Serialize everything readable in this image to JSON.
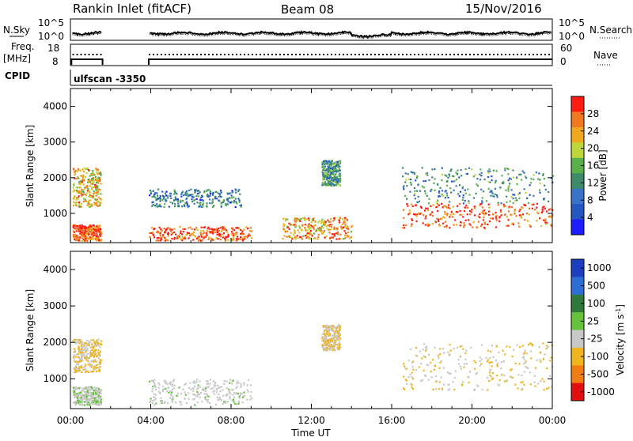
{
  "header": {
    "station": "Rankin Inlet (fitACF)",
    "beam": "Beam 08",
    "date": "15/Nov/2016"
  },
  "noise_panel": {
    "left_label": "N.Sky",
    "right_label": "N.Search",
    "left_ticks": [
      "10^5",
      "10^0"
    ],
    "right_ticks": [
      "10^5",
      "10^0"
    ]
  },
  "freq_panel": {
    "left_label_line1": "Freq.",
    "left_label_line2": "[MHz]",
    "left_ticks": [
      "18",
      "8"
    ],
    "right_label": "Nave",
    "right_ticks": [
      "60",
      "0"
    ]
  },
  "cpid": {
    "label": "CPID",
    "value": "ulfscan -3350"
  },
  "time_axis": {
    "label": "Time UT",
    "ticks": [
      "00:00",
      "04:00",
      "08:00",
      "12:00",
      "16:00",
      "20:00",
      "00:00"
    ]
  },
  "colors": {
    "power_scale": [
      "#1c1cff",
      "#2457c0",
      "#3a74c8",
      "#3f8a6a",
      "#59b04a",
      "#bfd63a",
      "#f0a81e",
      "#f07820",
      "#ff1a12"
    ],
    "velocity_scale": [
      "#1b3fbf",
      "#2d6ed6",
      "#2f7a3a",
      "#66c23a",
      "#c8c8c8",
      "#f0b41e",
      "#f07c14",
      "#e01010"
    ]
  },
  "chart_data": [
    {
      "type": "heatmap",
      "title": "",
      "xlabel": "",
      "ylabel": "Slant Range [km]",
      "xlim": [
        0,
        24
      ],
      "ylim": [
        180,
        4500
      ],
      "y_ticks": [
        "1000",
        "2000",
        "3000",
        "4000"
      ],
      "colorbar": {
        "label": "Power [dB]",
        "range": [
          0,
          32
        ],
        "tick_labels": [
          "4",
          "8",
          "12",
          "16",
          "20",
          "24",
          "28"
        ]
      },
      "data_gaps_hours": [
        [
          1.6,
          3.9
        ]
      ],
      "echo_regions": [
        {
          "t_start": 0.1,
          "t_end": 1.5,
          "r_start": 250,
          "r_end": 700,
          "power_db": 28
        },
        {
          "t_start": 0.1,
          "t_end": 1.5,
          "r_start": 1200,
          "r_end": 2300,
          "power_db": 22
        },
        {
          "t_start": 3.9,
          "t_end": 9.0,
          "r_start": 250,
          "r_end": 650,
          "power_db": 28
        },
        {
          "t_start": 3.9,
          "t_end": 8.5,
          "r_start": 1200,
          "r_end": 1700,
          "power_db": 10
        },
        {
          "t_start": 10.5,
          "t_end": 14.0,
          "r_start": 300,
          "r_end": 900,
          "power_db": 24
        },
        {
          "t_start": 12.5,
          "t_end": 13.4,
          "r_start": 1800,
          "r_end": 2500,
          "power_db": 12
        },
        {
          "t_start": 16.5,
          "t_end": 24.0,
          "r_start": 600,
          "r_end": 1300,
          "power_db": 28
        },
        {
          "t_start": 16.5,
          "t_end": 24.0,
          "r_start": 1300,
          "r_end": 2300,
          "power_db": 12
        }
      ]
    },
    {
      "type": "heatmap",
      "title": "",
      "xlabel": "Time UT",
      "ylabel": "Slant Range [km]",
      "xlim": [
        0,
        24
      ],
      "ylim": [
        180,
        4500
      ],
      "y_ticks": [
        "1000",
        "2000",
        "3000",
        "4000"
      ],
      "colorbar": {
        "label": "Velocity [m s^-1]",
        "range": [
          -1200,
          1200
        ],
        "tick_labels": [
          "1000",
          "500",
          "100",
          "25",
          "-25",
          "-100",
          "-500",
          "-1000"
        ]
      },
      "data_gaps_hours": [
        [
          1.6,
          3.9
        ]
      ],
      "echo_regions": [
        {
          "t_start": 0.1,
          "t_end": 1.5,
          "r_start": 1200,
          "r_end": 2100,
          "velocity": -300
        },
        {
          "t_start": 0.1,
          "t_end": 1.5,
          "r_start": 300,
          "r_end": 800,
          "velocity": -50
        },
        {
          "t_start": 3.9,
          "t_end": 9.0,
          "r_start": 300,
          "r_end": 1000,
          "velocity": -100
        },
        {
          "t_start": 12.5,
          "t_end": 13.4,
          "r_start": 1800,
          "r_end": 2500,
          "velocity": -300
        },
        {
          "t_start": 16.5,
          "t_end": 24.0,
          "r_start": 700,
          "r_end": 2000,
          "velocity": -300
        }
      ]
    }
  ]
}
